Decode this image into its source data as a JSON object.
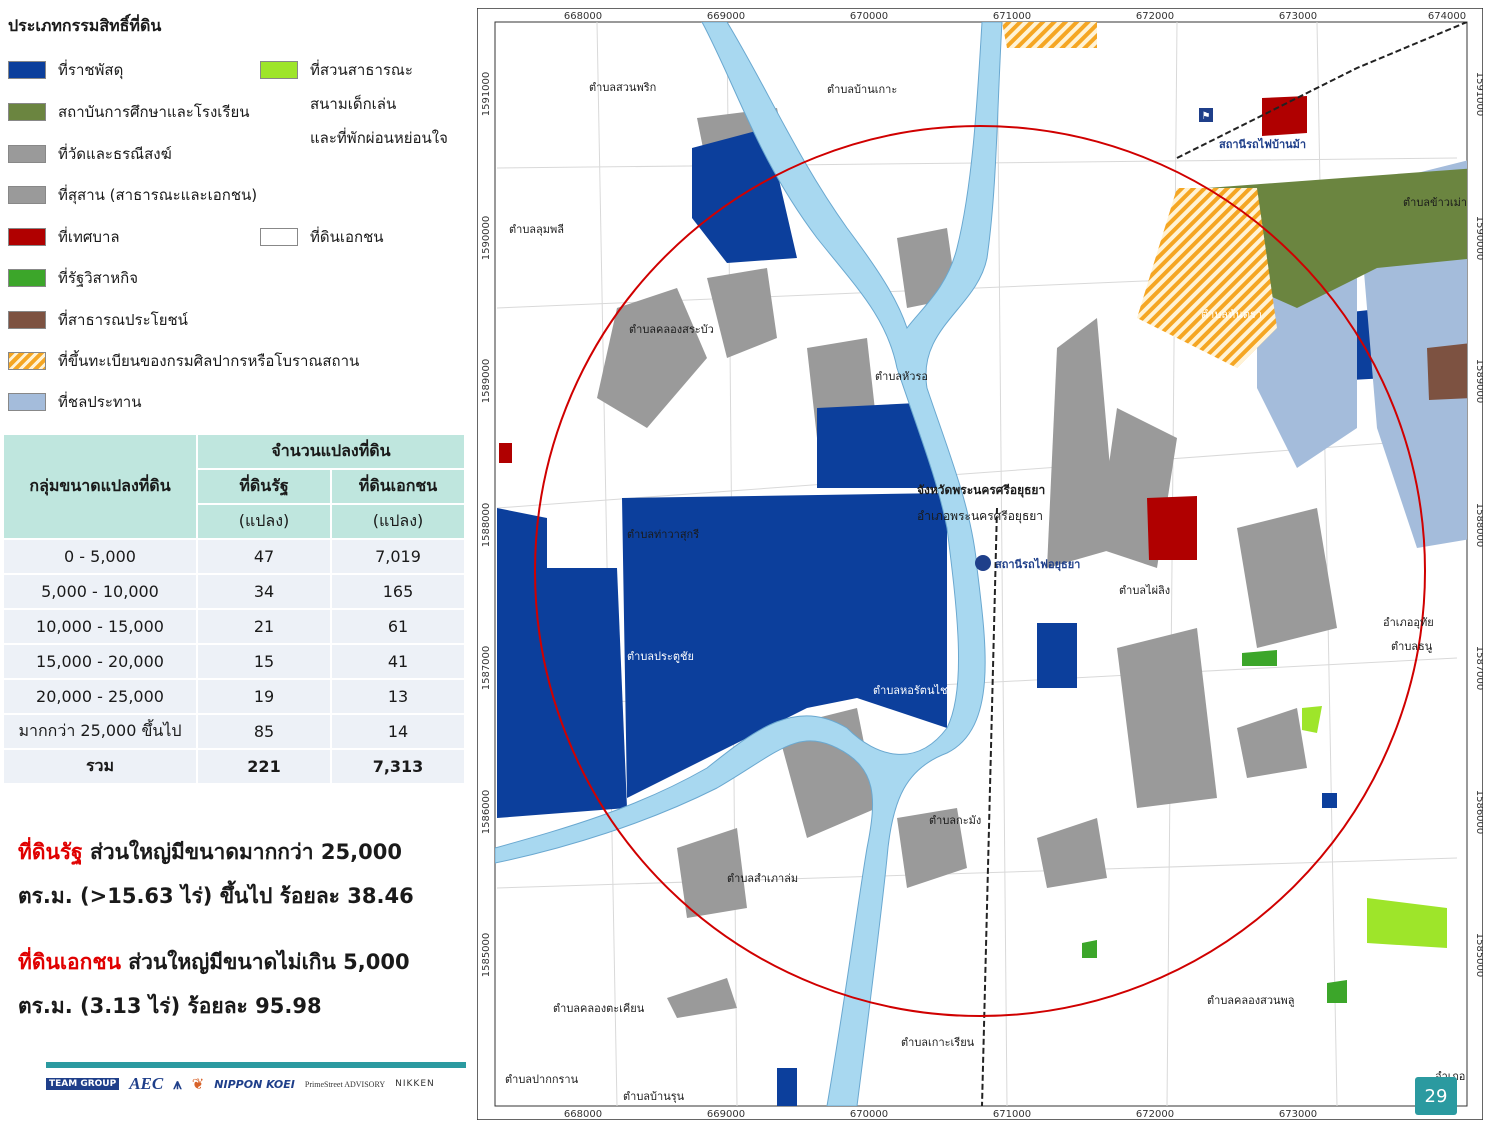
{
  "legend": {
    "title": "ประเภทกรรมสิทธิ์ที่ดิน",
    "items_left": [
      {
        "label": "ที่ราชพัสดุ",
        "color": "#0c3f9c"
      },
      {
        "label": "สถาบันการศึกษาและโรงเรียน",
        "color": "#6b8540"
      },
      {
        "label": "ที่วัดและธรณีสงฆ์",
        "color": "#9a9a9a"
      },
      {
        "label": "ที่สุสาน (สาธารณะและเอกชน)",
        "color": "#9a9a9a"
      },
      {
        "label": "ที่เทศบาล",
        "color": "#b00000"
      },
      {
        "label": "ที่รัฐวิสาหกิจ",
        "color": "#3ca62a"
      },
      {
        "label": "ที่สาธารณประโยชน์",
        "color": "#7d5241"
      },
      {
        "label": "ที่ขึ้นทะเบียนของกรมศิลปากรหรือโบราณสถาน",
        "color": "#f5a623"
      },
      {
        "label": "ที่ชลประทาน",
        "color": "#a4bcdb"
      }
    ],
    "park_line1": "ที่สวนสาธารณะ",
    "park_line2": "สนามเด็กเล่น",
    "park_line3": "และที่พักผ่อนหย่อนใจ",
    "park_color": "#9ee52a",
    "private_label": "ที่ดินเอกชน",
    "private_color": "#ffffff"
  },
  "table": {
    "group_header": "กลุ่มขนาดแปลงที่ดิน",
    "count_header": "จำนวนแปลงที่ดิน",
    "col_state": "ที่ดินรัฐ",
    "col_private": "ที่ดินเอกชน",
    "unit_state": "(แปลง)",
    "unit_private": "(แปลง)",
    "rows": [
      {
        "range": "0 - 5,000",
        "state": "47",
        "private": "7,019"
      },
      {
        "range": "5,000 - 10,000",
        "state": "34",
        "private": "165"
      },
      {
        "range": "10,000 - 15,000",
        "state": "21",
        "private": "61"
      },
      {
        "range": "15,000 - 20,000",
        "state": "15",
        "private": "41"
      },
      {
        "range": "20,000 - 25,000",
        "state": "19",
        "private": "13"
      },
      {
        "range": "มากกว่า 25,000 ขึ้นไป",
        "state": "85",
        "private": "14"
      }
    ],
    "total": {
      "range": "รวม",
      "state": "221",
      "private": "7,313"
    }
  },
  "notes": {
    "state_highlight": "ที่ดินรัฐ",
    "state_text1": " ส่วนใหญ่มีขนาดมากกว่า 25,000",
    "state_text2": "ตร.ม. (>15.63 ไร่) ขึ้นไป ร้อยละ 38.46",
    "private_highlight": "ที่ดินเอกชน",
    "private_text1": " ส่วนใหญ่มีขนาดไม่เกิน 5,000",
    "private_text2": "ตร.ม. (3.13 ไร่) ร้อยละ 95.98"
  },
  "logos": [
    "TEAM GROUP",
    "AEC",
    "NIPPON KOEI",
    "PrimeStreet ADVISORY",
    "NIKKEN"
  ],
  "map": {
    "x_ticks": [
      "668000",
      "669000",
      "670000",
      "671000",
      "672000",
      "673000",
      "674000"
    ],
    "y_ticks": [
      "1591000",
      "1590000",
      "1589000",
      "1588000",
      "1587000",
      "1586000",
      "1585000"
    ],
    "station1": "สถานีรถไฟบ้านม้า",
    "station2": "สถานีรถไฟอยุธยา",
    "province": "จังหวัดพระนครศรีอยุธยา",
    "district": "อำเภอพระนครศรีอยุธยา",
    "district_uthai_1": "อำเภออุทัย",
    "district_uthai_2": "ตำบลธนู",
    "district_bottom": "อำเภอ",
    "subdistricts": {
      "suan_phrik": "ตำบลสวนพริก",
      "ban_ko": "ตำบลบ้านเกาะ",
      "lum_phli": "ตำบลลุมพลี",
      "khlong_sa_bua": "ตำบลคลองสระบัว",
      "hua_ro": "ตำบลหัวรอ",
      "tha_wasukri": "ตำบลท่าวาสุกรี",
      "pratu_chai": "ตำบลประตูชัย",
      "ho_rattanachai": "ตำบลหอรัตนไชย",
      "phai_ling": "ตำบลไผ่ลิง",
      "kamang": "ตำบลกะมัง",
      "samphao_lom": "ตำบลสำเภาล่ม",
      "khlong_takhian": "ตำบลคลองตะเคียน",
      "ko_rian": "ตำบลเกาะเรียน",
      "khlong_suan_phlu": "ตำบลคลองสวนพลู",
      "pak_kran": "ตำบลปากกราน",
      "ban_run": "ตำบลบ้านรุน",
      "khao_mao": "ตำบลข้าวเม่า",
      "han_tra": "ตำบลหันตรา"
    }
  },
  "page_number": "29"
}
